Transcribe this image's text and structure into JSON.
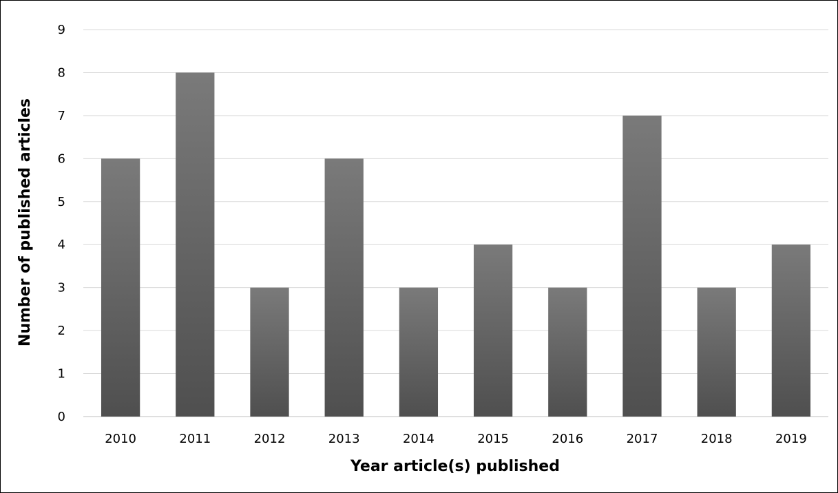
{
  "chart_data": {
    "type": "bar",
    "categories": [
      "2010",
      "2011",
      "2012",
      "2013",
      "2014",
      "2015",
      "2016",
      "2017",
      "2018",
      "2019"
    ],
    "values": [
      6,
      8,
      3,
      6,
      3,
      4,
      3,
      7,
      3,
      4
    ],
    "title": "",
    "xlabel": "Year article(s) published",
    "ylabel": "Number of published articles",
    "ylim": [
      0,
      9
    ],
    "yticks": [
      "0",
      "1",
      "2",
      "3",
      "4",
      "5",
      "6",
      "7",
      "8",
      "9"
    ],
    "grid": "horizontal",
    "legend": "none",
    "colors": {
      "bar_top": "#7a7a7a",
      "bar_bottom": "#4f4f4f",
      "grid": "#d9d9d9",
      "axis": "#bfbfbf"
    }
  }
}
